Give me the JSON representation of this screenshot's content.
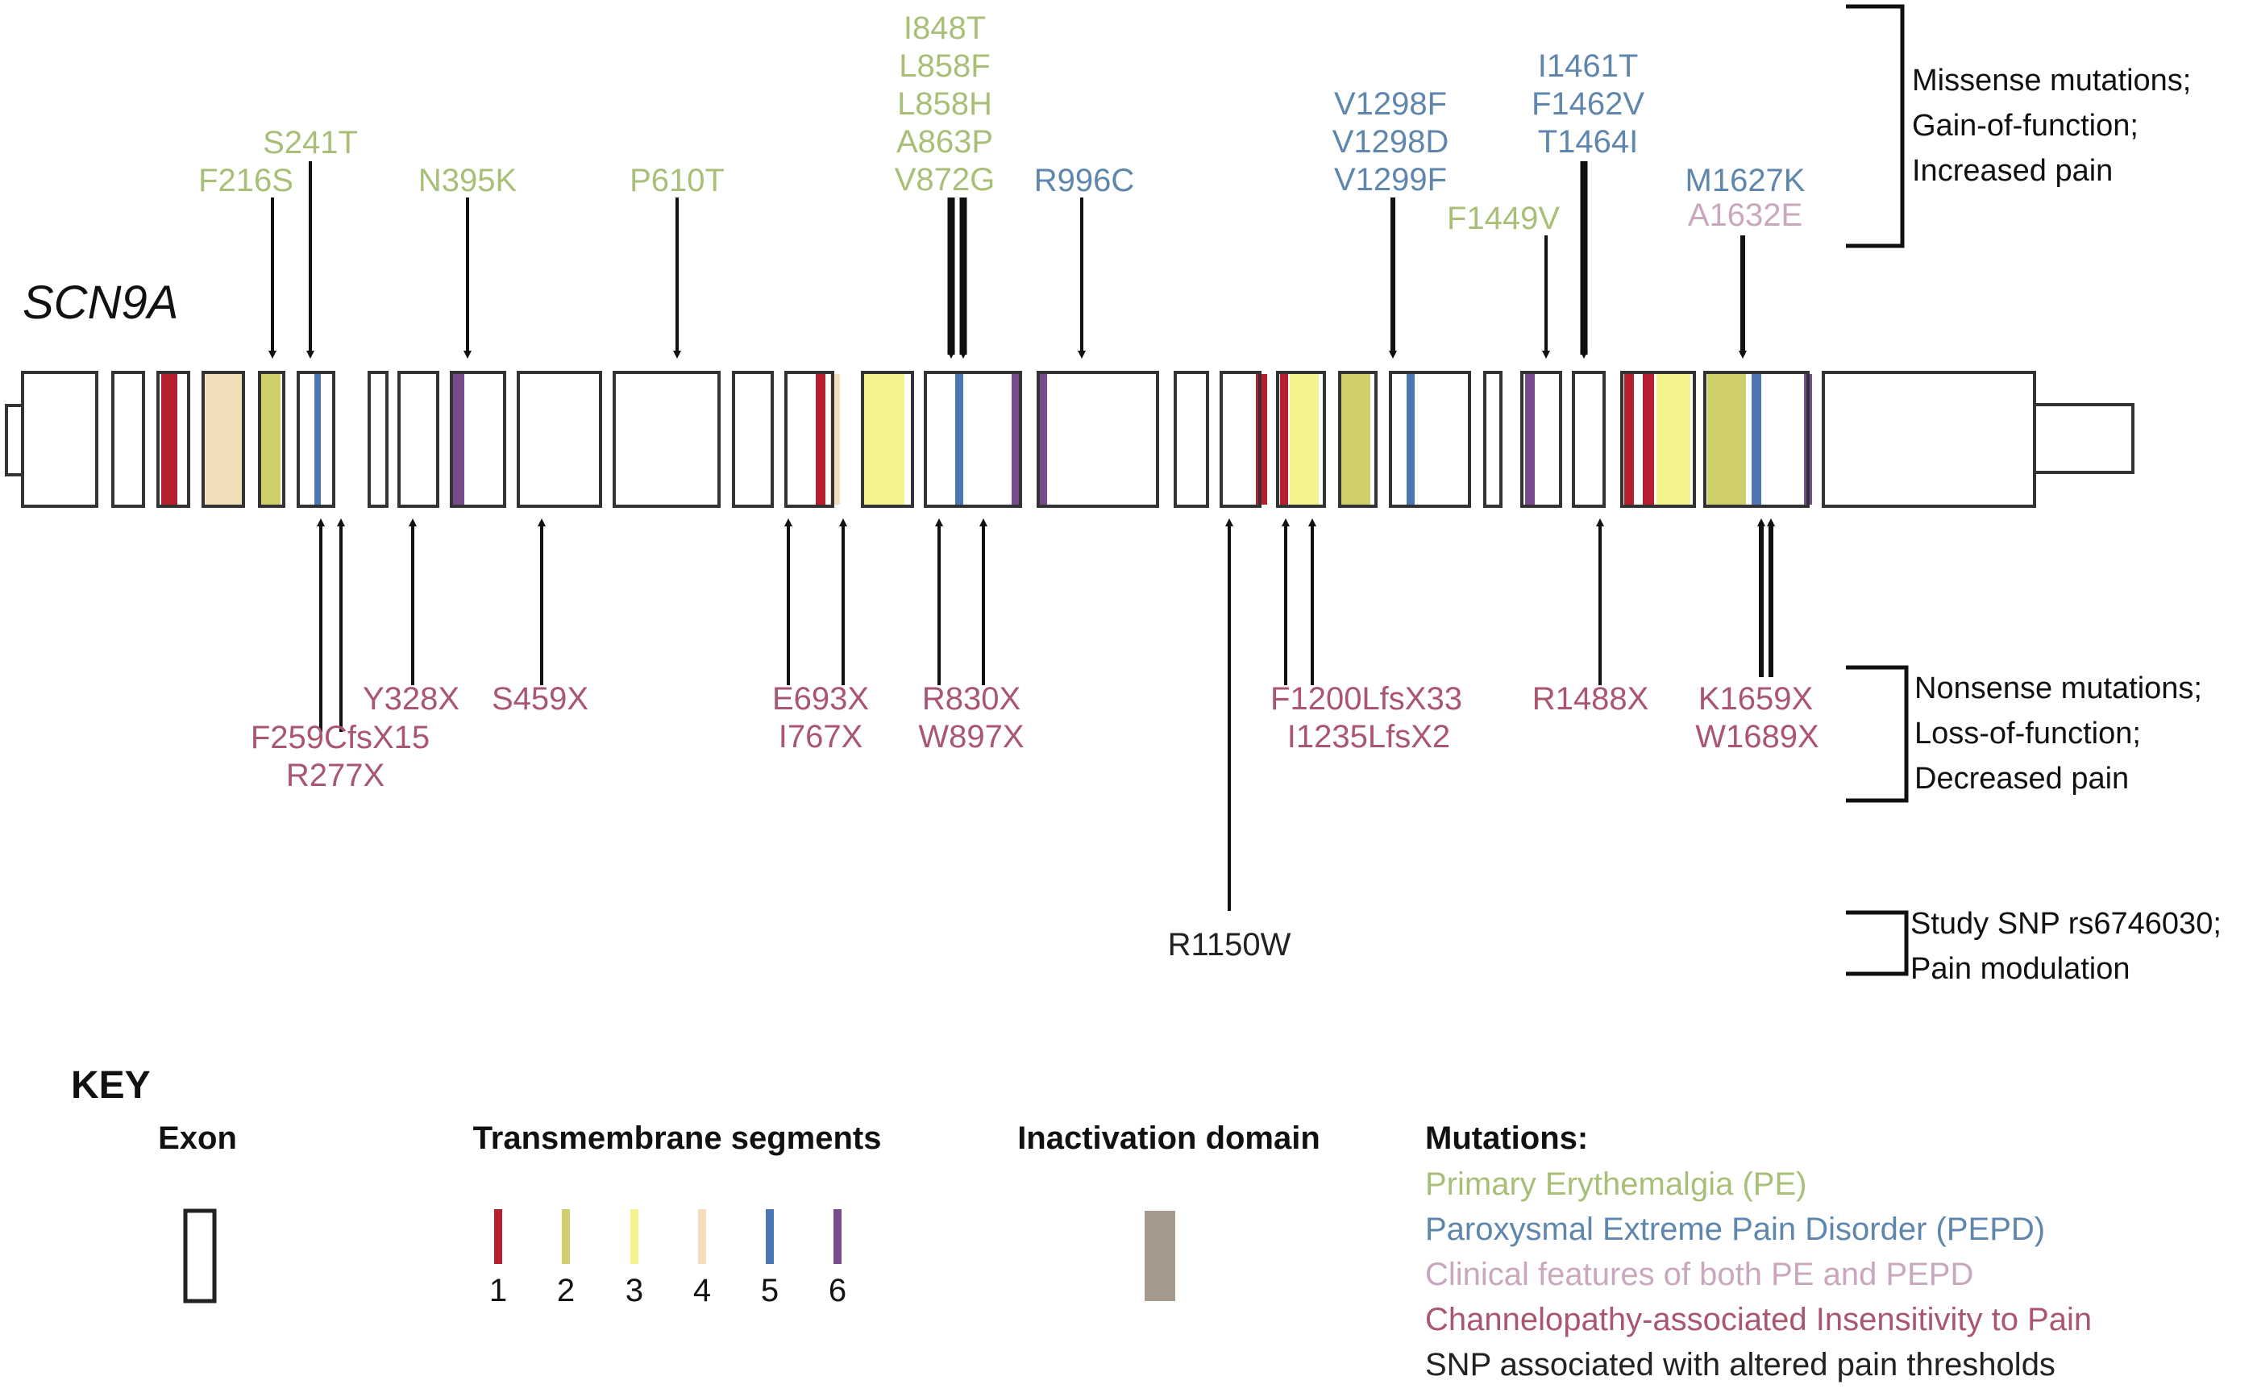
{
  "gene_label": "SCN9A",
  "colors": {
    "pe": "#a9bf78",
    "pepd": "#5f86ad",
    "both": "#c9a8bd",
    "cip": "#a9566e",
    "snp": "#222222",
    "tm1": "#b51f2e",
    "tm2": "#cfcf6b",
    "tm3": "#f4f28a",
    "tm4": "#f0dfb8",
    "tm5": "#4d77b4",
    "tm6": "#7a4b8c",
    "inactivation": "#a59a8c"
  },
  "top_groups": [
    {
      "labels": [
        "S241T",
        "F216S"
      ],
      "color": "pe"
    },
    {
      "labels": [
        "N395K"
      ],
      "color": "pe"
    },
    {
      "labels": [
        "P610T"
      ],
      "color": "pe"
    },
    {
      "labels": [
        "I848T",
        "L858F",
        "L858H",
        "A863P",
        "V872G"
      ],
      "color": "pe"
    },
    {
      "labels": [
        "R996C"
      ],
      "color": "pepd"
    },
    {
      "labels": [
        "V1298F",
        "V1298D",
        "V1299F"
      ],
      "color": "pepd"
    },
    {
      "labels": [
        "F1449V"
      ],
      "color": "pe"
    },
    {
      "labels": [
        "I1461T",
        "F1462V",
        "T1464I"
      ],
      "color": "pepd"
    },
    {
      "labels": [
        "M1627K"
      ],
      "color": "pepd"
    },
    {
      "labels": [
        "A1632E"
      ],
      "color": "both"
    }
  ],
  "bottom_groups": [
    {
      "labels": [
        "F259CfsX15",
        "R277X"
      ],
      "color": "cip"
    },
    {
      "labels": [
        "Y328X"
      ],
      "color": "cip"
    },
    {
      "labels": [
        "S459X"
      ],
      "color": "cip"
    },
    {
      "labels": [
        "E693X",
        "I767X"
      ],
      "color": "cip"
    },
    {
      "labels": [
        "R830X",
        "W897X"
      ],
      "color": "cip"
    },
    {
      "labels": [
        "F1200LfsX33",
        "I1235LfsX2"
      ],
      "color": "cip"
    },
    {
      "labels": [
        "R1488X"
      ],
      "color": "cip"
    },
    {
      "labels": [
        "K1659X",
        "W1689X"
      ],
      "color": "cip"
    },
    {
      "labels": [
        "R1150W"
      ],
      "color": "snp"
    }
  ],
  "brackets": [
    {
      "lines": [
        "Missense mutations;",
        "Gain-of-function;",
        "Increased pain"
      ]
    },
    {
      "lines": [
        "Nonsense mutations;",
        "Loss-of-function;",
        "Decreased pain"
      ]
    },
    {
      "lines": [
        "Study SNP rs6746030;",
        "Pain modulation"
      ]
    }
  ],
  "key": {
    "title": "KEY",
    "exon_label": "Exon",
    "tm_label": "Transmembrane segments",
    "tm_numbers": [
      "1",
      "2",
      "3",
      "4",
      "5",
      "6"
    ],
    "inactivation_label": "Inactivation domain",
    "mutations_label": "Mutations:",
    "mutation_entries": [
      {
        "text": "Primary Erythemalgia (PE)",
        "color": "pe"
      },
      {
        "text": "Paroxysmal Extreme Pain Disorder (PEPD)",
        "color": "pepd"
      },
      {
        "text": "Clinical features of both PE and PEPD",
        "color": "both"
      },
      {
        "text": "Channelopathy-associated Insensitivity to Pain",
        "color": "cip"
      },
      {
        "text": "SNP associated with altered pain thresholds",
        "color": "snp"
      }
    ]
  }
}
